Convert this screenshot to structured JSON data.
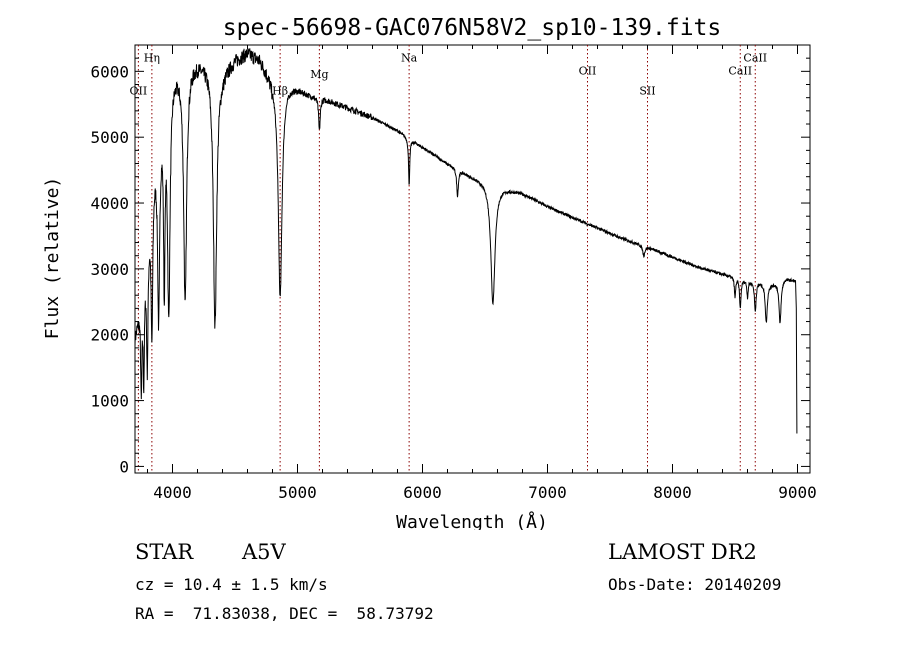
{
  "chart_data": {
    "type": "line",
    "title": "spec-56698-GAC076N58V2_sp10-139.fits",
    "xlabel": "Wavelength (Å)",
    "ylabel": "Flux (relative)",
    "xlim": [
      3700,
      9100
    ],
    "ylim": [
      -100,
      6400
    ],
    "xticks": [
      4000,
      5000,
      6000,
      7000,
      8000,
      9000
    ],
    "yticks": [
      0,
      1000,
      2000,
      3000,
      4000,
      5000,
      6000
    ],
    "grid": false,
    "line_color": "#000000",
    "marker_color": "#8b0000",
    "lines": [
      {
        "name": "Hη",
        "x": 3835,
        "label_y": 6150
      },
      {
        "name": "OII",
        "x": 3727,
        "label_y": 5650
      },
      {
        "name": "Hβ",
        "x": 4861,
        "label_y": 5650
      },
      {
        "name": "Mg",
        "x": 5175,
        "label_y": 5900
      },
      {
        "name": "Na",
        "x": 5893,
        "label_y": 6150
      },
      {
        "name": "OII",
        "x": 7320,
        "label_y": 5950
      },
      {
        "name": "SII",
        "x": 7800,
        "label_y": 5650
      },
      {
        "name": "CaII",
        "x": 8542,
        "label_y": 5950
      },
      {
        "name": "CaII",
        "x": 8662,
        "label_y": 6150
      }
    ],
    "series": [
      {
        "continuum": [
          [
            3700,
            2000
          ],
          [
            3750,
            2600
          ],
          [
            3800,
            3500
          ],
          [
            3850,
            4600
          ],
          [
            3900,
            5300
          ],
          [
            3950,
            5700
          ],
          [
            4000,
            6000
          ],
          [
            4100,
            6100
          ],
          [
            4200,
            6150
          ],
          [
            4300,
            6100
          ],
          [
            4400,
            6000
          ],
          [
            4500,
            6200
          ],
          [
            4600,
            6300
          ],
          [
            4700,
            6200
          ],
          [
            4800,
            5900
          ],
          [
            4900,
            5850
          ],
          [
            5000,
            5750
          ],
          [
            5100,
            5650
          ],
          [
            5200,
            5600
          ],
          [
            5400,
            5450
          ],
          [
            5600,
            5300
          ],
          [
            5800,
            5100
          ],
          [
            6000,
            4850
          ],
          [
            6200,
            4600
          ],
          [
            6400,
            4400
          ],
          [
            6600,
            4260
          ],
          [
            6800,
            4150
          ],
          [
            7000,
            3950
          ],
          [
            7200,
            3780
          ],
          [
            7400,
            3620
          ],
          [
            7600,
            3460
          ],
          [
            7800,
            3330
          ],
          [
            8000,
            3180
          ],
          [
            8200,
            3030
          ],
          [
            8400,
            2920
          ],
          [
            8600,
            2830
          ],
          [
            8800,
            2780
          ],
          [
            8900,
            2860
          ],
          [
            8980,
            2820
          ]
        ],
        "absorptions": [
          {
            "center": 3750,
            "depth": 1400,
            "width": 6
          },
          {
            "center": 3770,
            "depth": 1500,
            "width": 6
          },
          {
            "center": 3798,
            "depth": 1800,
            "width": 7
          },
          {
            "center": 3835,
            "depth": 2200,
            "width": 8
          },
          {
            "center": 3889,
            "depth": 2800,
            "width": 10
          },
          {
            "center": 3934,
            "depth": 2600,
            "width": 7
          },
          {
            "center": 3970,
            "depth": 3400,
            "width": 12
          },
          {
            "center": 4101,
            "depth": 3600,
            "width": 14
          },
          {
            "center": 4340,
            "depth": 3900,
            "width": 16
          },
          {
            "center": 4861,
            "depth": 3300,
            "width": 18
          },
          {
            "center": 5175,
            "depth": 500,
            "width": 8
          },
          {
            "center": 5893,
            "depth": 700,
            "width": 6
          },
          {
            "center": 6280,
            "depth": 400,
            "width": 8
          },
          {
            "center": 6563,
            "depth": 1800,
            "width": 20
          },
          {
            "center": 7770,
            "depth": 150,
            "width": 10
          },
          {
            "center": 8500,
            "depth": 300,
            "width": 6
          },
          {
            "center": 8542,
            "depth": 450,
            "width": 7
          },
          {
            "center": 8600,
            "depth": 250,
            "width": 6
          },
          {
            "center": 8662,
            "depth": 450,
            "width": 8
          },
          {
            "center": 8750,
            "depth": 600,
            "width": 10
          },
          {
            "center": 8860,
            "depth": 650,
            "width": 10
          }
        ]
      }
    ]
  },
  "info": {
    "object_class": "STAR",
    "subclass": "A5V",
    "survey": "LAMOST DR2",
    "cz": "cz = 10.4 ± 1.5 km/s",
    "obs_date": "Obs-Date: 20140209",
    "coords": "RA =  71.83038, DEC =  58.73792"
  }
}
